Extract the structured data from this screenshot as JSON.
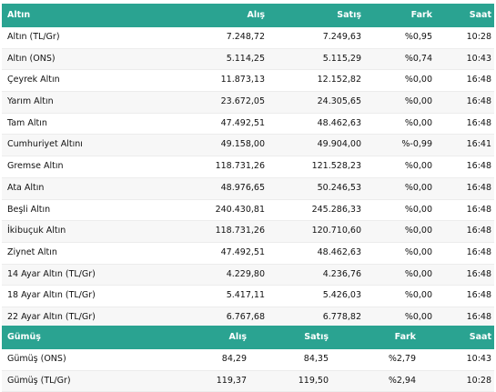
{
  "gold": {
    "header": {
      "name": "Altın",
      "buy": "Alış",
      "sell": "Satış",
      "diff": "Fark",
      "time": "Saat"
    },
    "rows": [
      {
        "name": "Altın (TL/Gr)",
        "buy": "7.248,72",
        "sell": "7.249,63",
        "diff": "%0,95",
        "time": "10:28"
      },
      {
        "name": "Altın (ONS)",
        "buy": "5.114,25",
        "sell": "5.115,29",
        "diff": "%0,74",
        "time": "10:43"
      },
      {
        "name": "Çeyrek Altın",
        "buy": "11.873,13",
        "sell": "12.152,82",
        "diff": "%0,00",
        "time": "16:48"
      },
      {
        "name": "Yarım Altın",
        "buy": "23.672,05",
        "sell": "24.305,65",
        "diff": "%0,00",
        "time": "16:48"
      },
      {
        "name": "Tam Altın",
        "buy": "47.492,51",
        "sell": "48.462,63",
        "diff": "%0,00",
        "time": "16:48"
      },
      {
        "name": "Cumhuriyet Altını",
        "buy": "49.158,00",
        "sell": "49.904,00",
        "diff": "%-0,99",
        "time": "16:41"
      },
      {
        "name": "Gremse Altın",
        "buy": "118.731,26",
        "sell": "121.528,23",
        "diff": "%0,00",
        "time": "16:48"
      },
      {
        "name": "Ata Altın",
        "buy": "48.976,65",
        "sell": "50.246,53",
        "diff": "%0,00",
        "time": "16:48"
      },
      {
        "name": "Beşli Altın",
        "buy": "240.430,81",
        "sell": "245.286,33",
        "diff": "%0,00",
        "time": "16:48"
      },
      {
        "name": "İkibuçuk Altın",
        "buy": "118.731,26",
        "sell": "120.710,60",
        "diff": "%0,00",
        "time": "16:48"
      },
      {
        "name": "Ziynet Altın",
        "buy": "47.492,51",
        "sell": "48.462,63",
        "diff": "%0,00",
        "time": "16:48"
      },
      {
        "name": "14 Ayar Altın (TL/Gr)",
        "buy": "4.229,80",
        "sell": "4.236,76",
        "diff": "%0,00",
        "time": "16:48"
      },
      {
        "name": "18 Ayar Altın (TL/Gr)",
        "buy": "5.417,11",
        "sell": "5.426,03",
        "diff": "%0,00",
        "time": "16:48"
      },
      {
        "name": "22 Ayar Altın (TL/Gr)",
        "buy": "6.767,68",
        "sell": "6.778,82",
        "diff": "%0,00",
        "time": "16:48"
      }
    ]
  },
  "silver": {
    "header": {
      "name": "Gümüş",
      "buy": "Alış",
      "sell": "Satış",
      "diff": "Fark",
      "time": "Saat"
    },
    "rows": [
      {
        "name": "Gümüş (ONS)",
        "buy": "84,29",
        "sell": "84,35",
        "diff": "%2,79",
        "time": "10:43"
      },
      {
        "name": "Gümüş (TL/Gr)",
        "buy": "119,37",
        "sell": "119,50",
        "diff": "%2,94",
        "time": "10:28"
      }
    ]
  },
  "colors": {
    "header_bg": "#2aa391",
    "header_text": "#ffffff",
    "alt_row": "#f7f7f7"
  }
}
